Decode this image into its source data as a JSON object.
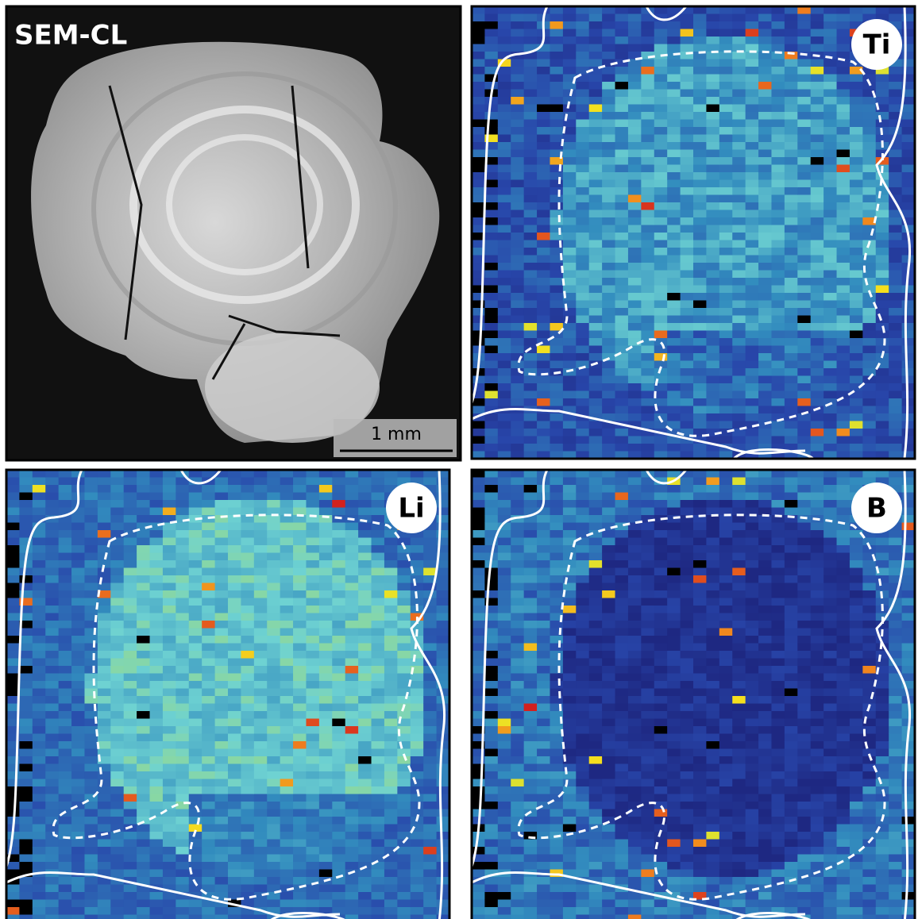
{
  "panels": [
    {
      "label": "SEM-CL"
    },
    {
      "label": "Ti"
    },
    {
      "label": "Li"
    },
    {
      "label": "B"
    }
  ],
  "scale_bar": {
    "label": "1 mm"
  }
}
